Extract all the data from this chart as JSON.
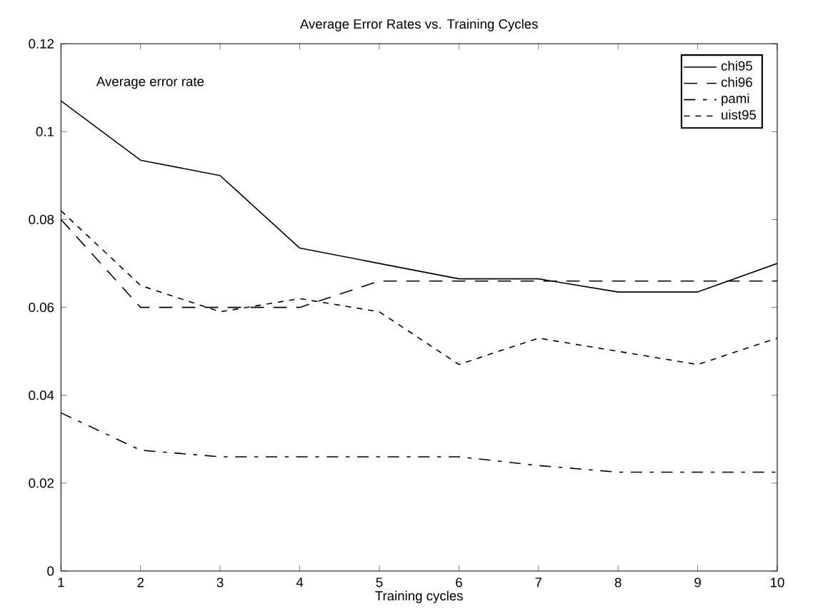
{
  "chart_data": {
    "type": "line",
    "title": "Average Error Rates vs. Training Cycles",
    "xlabel": "Training cycles",
    "annotations": [
      "Average error rate"
    ],
    "x": [
      1,
      2,
      3,
      4,
      5,
      6,
      7,
      8,
      9,
      10
    ],
    "series": [
      {
        "name": "chi95",
        "color": "#000000",
        "line_style": "solid",
        "values": [
          0.107,
          0.0935,
          0.09,
          0.0735,
          0.07,
          0.0665,
          0.0665,
          0.0635,
          0.0635,
          0.07
        ]
      },
      {
        "name": "chi96",
        "color": "#000000",
        "line_style": "dashed",
        "values": [
          0.08,
          0.06,
          0.06,
          0.06,
          0.066,
          0.066,
          0.066,
          0.066,
          0.066,
          0.066
        ]
      },
      {
        "name": "pami",
        "color": "#000000",
        "line_style": "dashed",
        "values": [
          0.036,
          0.0275,
          0.026,
          0.026,
          0.026,
          0.026,
          0.024,
          0.0225,
          0.0225,
          0.0225
        ]
      },
      {
        "name": "uist95",
        "color": "#000000",
        "line_style": "dashed",
        "values": [
          0.082,
          0.065,
          0.059,
          0.062,
          0.059,
          0.047,
          0.053,
          0.05,
          0.047,
          0.053
        ]
      }
    ],
    "xlim": [
      1,
      10
    ],
    "ylim": [
      0,
      0.12
    ],
    "xticks": [
      1,
      2,
      3,
      4,
      5,
      6,
      7,
      8,
      9,
      10
    ],
    "yticks": [
      0,
      0.02,
      0.04,
      0.06,
      0.08,
      0.1,
      0.12
    ],
    "grid": false,
    "legend": "top right",
    "marker": "none"
  }
}
